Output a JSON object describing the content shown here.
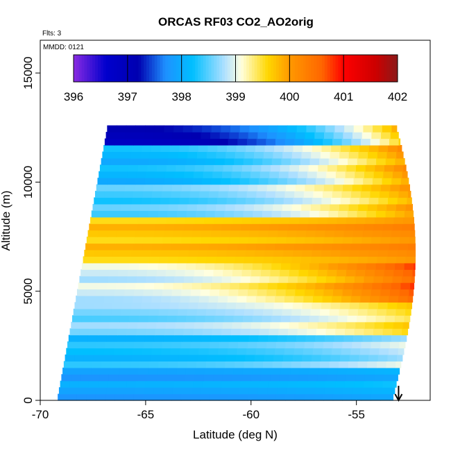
{
  "chart_data": {
    "type": "heatmap",
    "title": "ORCAS RF03 CO2_AO2orig",
    "annotations": {
      "flights": "Flts: 3",
      "date": "MMDD: 0121"
    },
    "xlabel": "Latitude (deg N)",
    "ylabel": "Altitude (m)",
    "xlim": [
      -70,
      -51.5
    ],
    "ylim": [
      0,
      16500
    ],
    "xticks": [
      -70,
      -65,
      -60,
      -55
    ],
    "xtick_labels": [
      "-70",
      "-65",
      "-60",
      "-55"
    ],
    "yticks": [
      0,
      5000,
      10000,
      15000
    ],
    "ytick_labels": [
      "0",
      "5000",
      "10000",
      "15000"
    ],
    "colorbar": {
      "min": 396,
      "max": 402,
      "ticks": [
        396,
        397,
        398,
        399,
        400,
        401,
        402
      ],
      "tick_labels": [
        "396",
        "397",
        "398",
        "399",
        "400",
        "401",
        "402"
      ],
      "stops": [
        {
          "v": 396.0,
          "c": "#8a2be2"
        },
        {
          "v": 396.6,
          "c": "#0000cd"
        },
        {
          "v": 397.2,
          "c": "#0000b0"
        },
        {
          "v": 397.7,
          "c": "#1e90ff"
        },
        {
          "v": 398.2,
          "c": "#00bfff"
        },
        {
          "v": 398.8,
          "c": "#b0e0ff"
        },
        {
          "v": 399.1,
          "c": "#ffffe0"
        },
        {
          "v": 399.6,
          "c": "#ffd700"
        },
        {
          "v": 400.0,
          "c": "#ff9900"
        },
        {
          "v": 400.6,
          "c": "#ff6600"
        },
        {
          "v": 401.0,
          "c": "#ff0000"
        },
        {
          "v": 401.6,
          "c": "#cc0000"
        },
        {
          "v": 402.0,
          "c": "#8b1a1a"
        }
      ]
    },
    "field": {
      "description_of_layers": "altitude bands of CO2 (ppm) at southern latitude",
      "layers": [
        {
          "z": [
            0,
            1500
          ],
          "south": 397.9,
          "north": 398.1
        },
        {
          "z": [
            1500,
            3000
          ],
          "south": 398.2,
          "north": 398.9
        },
        {
          "z": [
            3000,
            4500
          ],
          "south": 398.6,
          "north": 399.6
        },
        {
          "z": [
            4500,
            6200
          ],
          "south": 398.9,
          "north": 400.7
        },
        {
          "z": [
            6200,
            8300
          ],
          "south": 399.7,
          "north": 400.2
        },
        {
          "z": [
            8300,
            9800
          ],
          "south": 398.4,
          "north": 400.0
        },
        {
          "z": [
            9800,
            11800
          ],
          "south": 398.1,
          "north": 400.1
        },
        {
          "z": [
            11800,
            12600
          ],
          "south": 397.0,
          "north": 399.8
        }
      ],
      "coverage": {
        "bottom_lat": [
          -69.2,
          -53.3
        ],
        "top_lat": [
          -66.8,
          -53.5
        ],
        "top_alt": 12600
      }
    },
    "flight_track_marker": {
      "lat": -53.0,
      "symbol": "arrow-down"
    }
  }
}
